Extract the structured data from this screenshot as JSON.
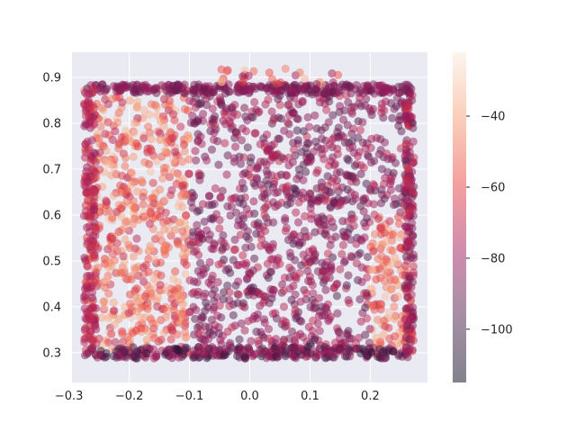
{
  "chart_data": {
    "type": "scatter",
    "title": "",
    "xlabel": "",
    "ylabel": "",
    "xlim": [
      -0.295,
      0.295
    ],
    "ylim": [
      0.235,
      0.955
    ],
    "x_ticks": [
      -0.3,
      -0.2,
      -0.1,
      0.0,
      0.1,
      0.2
    ],
    "x_tick_labels": [
      "−0.3",
      "−0.2",
      "−0.1",
      "0.0",
      "0.1",
      "0.2"
    ],
    "y_ticks": [
      0.3,
      0.4,
      0.5,
      0.6,
      0.7,
      0.8,
      0.9
    ],
    "y_tick_labels": [
      "0.3",
      "0.4",
      "0.5",
      "0.6",
      "0.7",
      "0.8",
      "0.9"
    ],
    "grid": true,
    "background_color": "#eaeaf2",
    "marker_alpha": 0.5,
    "data_region": {
      "x_range": [
        -0.275,
        0.27
      ],
      "y_range": [
        0.285,
        0.925
      ]
    },
    "colorbar": {
      "cmap": "rocket",
      "vmin": -115,
      "vmax": -22,
      "ticks": [
        -40,
        -60,
        -80,
        -100
      ],
      "tick_labels": [
        "−40",
        "−60",
        "−80",
        "−100"
      ],
      "colors": [
        "#03051a",
        "#4c1d4b",
        "#a11a5b",
        "#e83f3f",
        "#f69c73",
        "#faebdd"
      ]
    }
  }
}
